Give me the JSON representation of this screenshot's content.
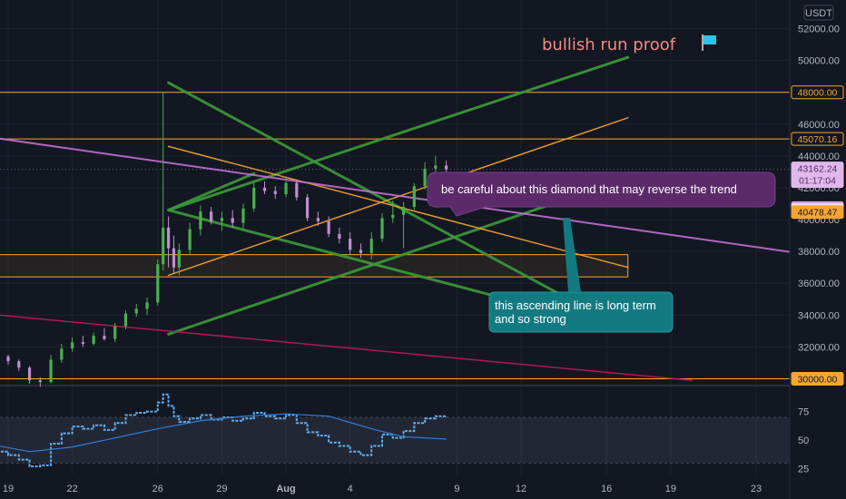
{
  "header": {
    "currency": "USDT"
  },
  "title": "bullish run proof",
  "colors": {
    "background": "#131722",
    "up": "#4caf50",
    "down": "#c08fd0",
    "trend_green": "#3d9a3a",
    "trend_orange": "#f7a531",
    "trend_violet": "#c46fd0",
    "trend_crimson": "#c2185b",
    "rsi": "#5fb0f0",
    "rsi_ma": "#2f7fd6",
    "callout_purple": "#5b2a6a",
    "callout_teal": "#147a82"
  },
  "icons": {
    "flag": "flag-icon"
  },
  "annotations": [
    {
      "text": "be careful about this diamond that may reverse the trend"
    },
    {
      "lines": [
        "this ascending line is long term",
        "and so strong"
      ]
    }
  ],
  "chart_data": {
    "type": "candlestick",
    "symbol_quote": "USDT",
    "price_axis": {
      "ylim": [
        29800,
        53800
      ],
      "ticks": [
        30000,
        32000,
        34000,
        36000,
        38000,
        40000,
        42000,
        44000,
        46000,
        48000,
        50000,
        52000
      ],
      "tick_labels": [
        "30000.00",
        "32000.00",
        "34000.00",
        "36000.00",
        "38000.00",
        "40000.00",
        "42000.00",
        "44000.00",
        "46000.00",
        "48000.00",
        "50000.00",
        "52000.00"
      ]
    },
    "rsi_axis": {
      "ylim": [
        20,
        93
      ],
      "ticks": [
        25,
        50,
        75
      ],
      "band": [
        30,
        70
      ]
    },
    "time_axis": {
      "start": "2021-07-19",
      "end": "2021-08-23",
      "ticks": [
        "2021-07-19",
        "2021-07-22",
        "2021-07-26",
        "2021-07-29",
        "2021-08-01",
        "2021-08-04",
        "2021-08-09",
        "2021-08-12",
        "2021-08-16",
        "2021-08-19",
        "2021-08-23"
      ],
      "tick_labels": [
        "19",
        "22",
        "26",
        "29",
        "Aug",
        "4",
        "9",
        "12",
        "16",
        "19",
        "23"
      ]
    },
    "price_tags": [
      {
        "value": "48000.00",
        "price": 48000,
        "bg": "#f7a531",
        "fg": "#131722",
        "style": "outline"
      },
      {
        "value": "45070.16",
        "price": 45070,
        "bg": "#f7a531",
        "fg": "#131722",
        "style": "outline"
      },
      {
        "value": "43162.24",
        "sub": "01:17:04",
        "price": 43162,
        "bg": "#e0b8ea",
        "fg": "#5a2a6a",
        "style": "fill"
      },
      {
        "value": "40724.74",
        "price": 40725,
        "bg": "#d4a3e0",
        "fg": "#131722",
        "style": "fill"
      },
      {
        "value": "40590.00",
        "price": 40590,
        "bg": "#e8e8ea",
        "fg": "#131722",
        "style": "fill"
      },
      {
        "value": "40478.47",
        "price": 40478,
        "bg": "#f7a531",
        "fg": "#131722",
        "style": "fill"
      },
      {
        "value": "30000.00",
        "price": 30000,
        "bg": "#f7a531",
        "fg": "#131722",
        "style": "fill"
      }
    ],
    "horizontal_levels": [
      48000,
      45070,
      30000
    ],
    "zone": {
      "from": "2021-07-18",
      "to": "2021-08-17",
      "price_low": 36400,
      "price_high": 37800
    },
    "candles": [
      [
        "2021-07-18 00:00",
        31900,
        32050,
        31600,
        31800
      ],
      [
        "2021-07-18 12:00",
        31800,
        31850,
        31300,
        31400
      ],
      [
        "2021-07-19 00:00",
        31400,
        31500,
        30900,
        31100
      ],
      [
        "2021-07-19 12:00",
        31100,
        31200,
        30500,
        30700
      ],
      [
        "2021-07-20 00:00",
        30700,
        30800,
        29700,
        29900
      ],
      [
        "2021-07-20 12:00",
        29900,
        30100,
        29500,
        29800
      ],
      [
        "2021-07-21 00:00",
        29800,
        31500,
        29700,
        31200
      ],
      [
        "2021-07-21 12:00",
        31200,
        32200,
        31000,
        31900
      ],
      [
        "2021-07-22 00:00",
        31900,
        32600,
        31700,
        32300
      ],
      [
        "2021-07-22 12:00",
        32300,
        32700,
        32000,
        32200
      ],
      [
        "2021-07-23 00:00",
        32200,
        32900,
        32100,
        32700
      ],
      [
        "2021-07-23 12:00",
        32700,
        33200,
        32400,
        32500
      ],
      [
        "2021-07-24 00:00",
        32500,
        33500,
        32300,
        33300
      ],
      [
        "2021-07-24 12:00",
        33300,
        34300,
        33100,
        34100
      ],
      [
        "2021-07-25 00:00",
        34100,
        34700,
        33900,
        34400
      ],
      [
        "2021-07-25 12:00",
        34400,
        35100,
        34000,
        34800
      ],
      [
        "2021-07-26 00:00",
        34800,
        37500,
        34600,
        37200
      ],
      [
        "2021-07-26 06:00",
        37200,
        48000,
        36800,
        39500
      ],
      [
        "2021-07-26 12:00",
        39500,
        40200,
        37000,
        38200
      ],
      [
        "2021-07-26 18:00",
        38200,
        39000,
        36600,
        37000
      ],
      [
        "2021-07-27 00:00",
        37000,
        38500,
        36500,
        38100
      ],
      [
        "2021-07-27 12:00",
        38100,
        39800,
        37800,
        39400
      ],
      [
        "2021-07-28 00:00",
        39400,
        40900,
        39000,
        40500
      ],
      [
        "2021-07-28 12:00",
        40500,
        40800,
        39700,
        39900
      ],
      [
        "2021-07-29 00:00",
        39900,
        40500,
        39300,
        40100
      ],
      [
        "2021-07-29 12:00",
        40100,
        40600,
        39500,
        39800
      ],
      [
        "2021-07-30 00:00",
        39800,
        41000,
        39400,
        40700
      ],
      [
        "2021-07-30 12:00",
        40700,
        42300,
        40500,
        42000
      ],
      [
        "2021-07-31 00:00",
        42000,
        42400,
        41600,
        41800
      ],
      [
        "2021-07-31 12:00",
        41800,
        42100,
        41300,
        41600
      ],
      [
        "2021-08-01 00:00",
        41600,
        42600,
        41400,
        42300
      ],
      [
        "2021-08-01 12:00",
        42300,
        42500,
        41200,
        41400
      ],
      [
        "2021-08-02 00:00",
        41400,
        41600,
        39900,
        40100
      ],
      [
        "2021-08-02 12:00",
        40100,
        40500,
        39600,
        39900
      ],
      [
        "2021-08-03 00:00",
        39900,
        40200,
        38900,
        39100
      ],
      [
        "2021-08-03 12:00",
        39100,
        39500,
        38500,
        38800
      ],
      [
        "2021-08-04 00:00",
        38800,
        39200,
        37800,
        38100
      ],
      [
        "2021-08-04 12:00",
        38100,
        38500,
        37600,
        37900
      ],
      [
        "2021-08-05 00:00",
        37900,
        39200,
        37500,
        38800
      ],
      [
        "2021-08-05 12:00",
        38800,
        40400,
        38600,
        40100
      ],
      [
        "2021-08-06 00:00",
        40100,
        41200,
        39800,
        40300
      ],
      [
        "2021-08-06 12:00",
        40300,
        41100,
        38200,
        40800
      ],
      [
        "2021-08-07 00:00",
        40800,
        42300,
        40600,
        42100
      ],
      [
        "2021-08-07 12:00",
        42100,
        43600,
        41900,
        43200
      ],
      [
        "2021-08-08 00:00",
        43200,
        44000,
        42900,
        43400
      ],
      [
        "2021-08-08 12:00",
        43400,
        43700,
        42900,
        43162
      ]
    ],
    "rsi": [
      [
        "2021-07-18 00:00",
        42
      ],
      [
        "2021-07-18 12:00",
        40
      ],
      [
        "2021-07-19 00:00",
        37
      ],
      [
        "2021-07-19 12:00",
        33
      ],
      [
        "2021-07-20 00:00",
        27
      ],
      [
        "2021-07-20 12:00",
        28
      ],
      [
        "2021-07-21 00:00",
        47
      ],
      [
        "2021-07-21 12:00",
        56
      ],
      [
        "2021-07-22 00:00",
        62
      ],
      [
        "2021-07-22 12:00",
        60
      ],
      [
        "2021-07-23 00:00",
        63
      ],
      [
        "2021-07-23 12:00",
        59
      ],
      [
        "2021-07-24 00:00",
        65
      ],
      [
        "2021-07-24 12:00",
        72
      ],
      [
        "2021-07-25 00:00",
        74
      ],
      [
        "2021-07-25 12:00",
        75
      ],
      [
        "2021-07-26 00:00",
        83
      ],
      [
        "2021-07-26 06:00",
        90
      ],
      [
        "2021-07-26 12:00",
        80
      ],
      [
        "2021-07-26 18:00",
        71
      ],
      [
        "2021-07-27 00:00",
        66
      ],
      [
        "2021-07-27 12:00",
        69
      ],
      [
        "2021-07-28 00:00",
        72
      ],
      [
        "2021-07-28 12:00",
        68
      ],
      [
        "2021-07-29 00:00",
        70
      ],
      [
        "2021-07-29 12:00",
        67
      ],
      [
        "2021-07-30 00:00",
        69
      ],
      [
        "2021-07-30 12:00",
        74
      ],
      [
        "2021-07-31 00:00",
        71
      ],
      [
        "2021-07-31 12:00",
        69
      ],
      [
        "2021-08-01 00:00",
        72
      ],
      [
        "2021-08-01 12:00",
        65
      ],
      [
        "2021-08-02 00:00",
        57
      ],
      [
        "2021-08-02 12:00",
        54
      ],
      [
        "2021-08-03 00:00",
        48
      ],
      [
        "2021-08-03 12:00",
        45
      ],
      [
        "2021-08-04 00:00",
        40
      ],
      [
        "2021-08-04 12:00",
        37
      ],
      [
        "2021-08-05 00:00",
        45
      ],
      [
        "2021-08-05 12:00",
        55
      ],
      [
        "2021-08-06 00:00",
        52
      ],
      [
        "2021-08-06 12:00",
        58
      ],
      [
        "2021-08-07 00:00",
        65
      ],
      [
        "2021-08-07 12:00",
        69
      ],
      [
        "2021-08-08 00:00",
        71
      ],
      [
        "2021-08-08 12:00",
        70
      ]
    ],
    "rsi_ma": [
      [
        "2021-07-18 00:00",
        47
      ],
      [
        "2021-07-20 00:00",
        40
      ],
      [
        "2021-07-22 00:00",
        44
      ],
      [
        "2021-07-24 00:00",
        52
      ],
      [
        "2021-07-26 00:00",
        60
      ],
      [
        "2021-07-28 00:00",
        67
      ],
      [
        "2021-07-30 00:00",
        71
      ],
      [
        "2021-08-01 00:00",
        73
      ],
      [
        "2021-08-03 00:00",
        71
      ],
      [
        "2021-08-05 00:00",
        60
      ],
      [
        "2021-08-06 12:00",
        53
      ],
      [
        "2021-08-08 12:00",
        51
      ]
    ],
    "trendlines": [
      {
        "color": "trend_green",
        "width": 3,
        "p1": [
          "2021-07-26 12:00",
          48600
        ],
        "p2": [
          "2021-08-17 00:00",
          33000
        ]
      },
      {
        "color": "trend_green",
        "width": 3,
        "p1": [
          "2021-07-26 12:00",
          40600
        ],
        "p2": [
          "2021-08-17 00:00",
          50200
        ]
      },
      {
        "color": "trend_green",
        "width": 3,
        "p1": [
          "2021-07-26 12:00",
          40600
        ],
        "p2": [
          "2021-08-17 00:00",
          33000
        ]
      },
      {
        "color": "trend_green",
        "width": 3,
        "p1": [
          "2021-07-26 12:00",
          32800
        ],
        "p2": [
          "2021-08-17 00:00",
          42600
        ]
      },
      {
        "color": "trend_green",
        "width": 3,
        "p1": [
          "2021-07-26 12:00",
          40600
        ],
        "p2": [
          "2021-07-30 12:00",
          42900
        ]
      },
      {
        "color": "trend_orange",
        "width": 1.5,
        "p1": [
          "2021-07-26 12:00",
          44600
        ],
        "p2": [
          "2021-08-17 00:00",
          37000
        ]
      },
      {
        "color": "trend_orange",
        "width": 1.5,
        "p1": [
          "2021-07-26 12:00",
          36500
        ],
        "p2": [
          "2021-08-17 00:00",
          46400
        ]
      },
      {
        "color": "trend_violet",
        "width": 2,
        "p1": [
          "2021-07-17 00:00",
          45400
        ],
        "p2": [
          "2021-08-26 00:00",
          37700
        ]
      },
      {
        "color": "trend_crimson",
        "width": 1.5,
        "p1": [
          "2021-07-17 00:00",
          34200
        ],
        "p2": [
          "2021-08-20 00:00",
          29900
        ]
      }
    ]
  }
}
